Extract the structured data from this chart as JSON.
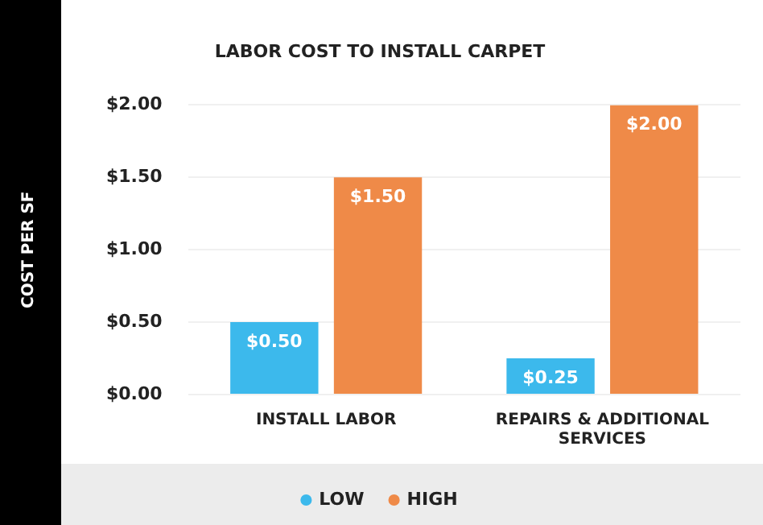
{
  "chart_data": {
    "type": "bar",
    "title": "LABOR COST TO INSTALL CARPET",
    "ylabel": "COST PER SF",
    "categories": [
      "INSTALL LABOR",
      "REPAIRS & ADDITIONAL SERVICES"
    ],
    "series": [
      {
        "name": "LOW",
        "color": "#3cb9ec",
        "values": [
          0.5,
          0.25
        ],
        "value_labels": [
          "$0.50",
          "$0.25"
        ]
      },
      {
        "name": "HIGH",
        "color": "#ef8a48",
        "values": [
          1.5,
          2.0
        ],
        "value_labels": [
          "$1.50",
          "$2.00"
        ]
      }
    ],
    "ylim": [
      0,
      2
    ],
    "yticks": [
      {
        "value": 0,
        "label": "$0.00"
      },
      {
        "value": 0.5,
        "label": "$0.50"
      },
      {
        "value": 1,
        "label": "$1.00"
      },
      {
        "value": 1.5,
        "label": "$1.50"
      },
      {
        "value": 2,
        "label": "$2.00"
      }
    ],
    "grid": "y",
    "legend": "bottom"
  }
}
